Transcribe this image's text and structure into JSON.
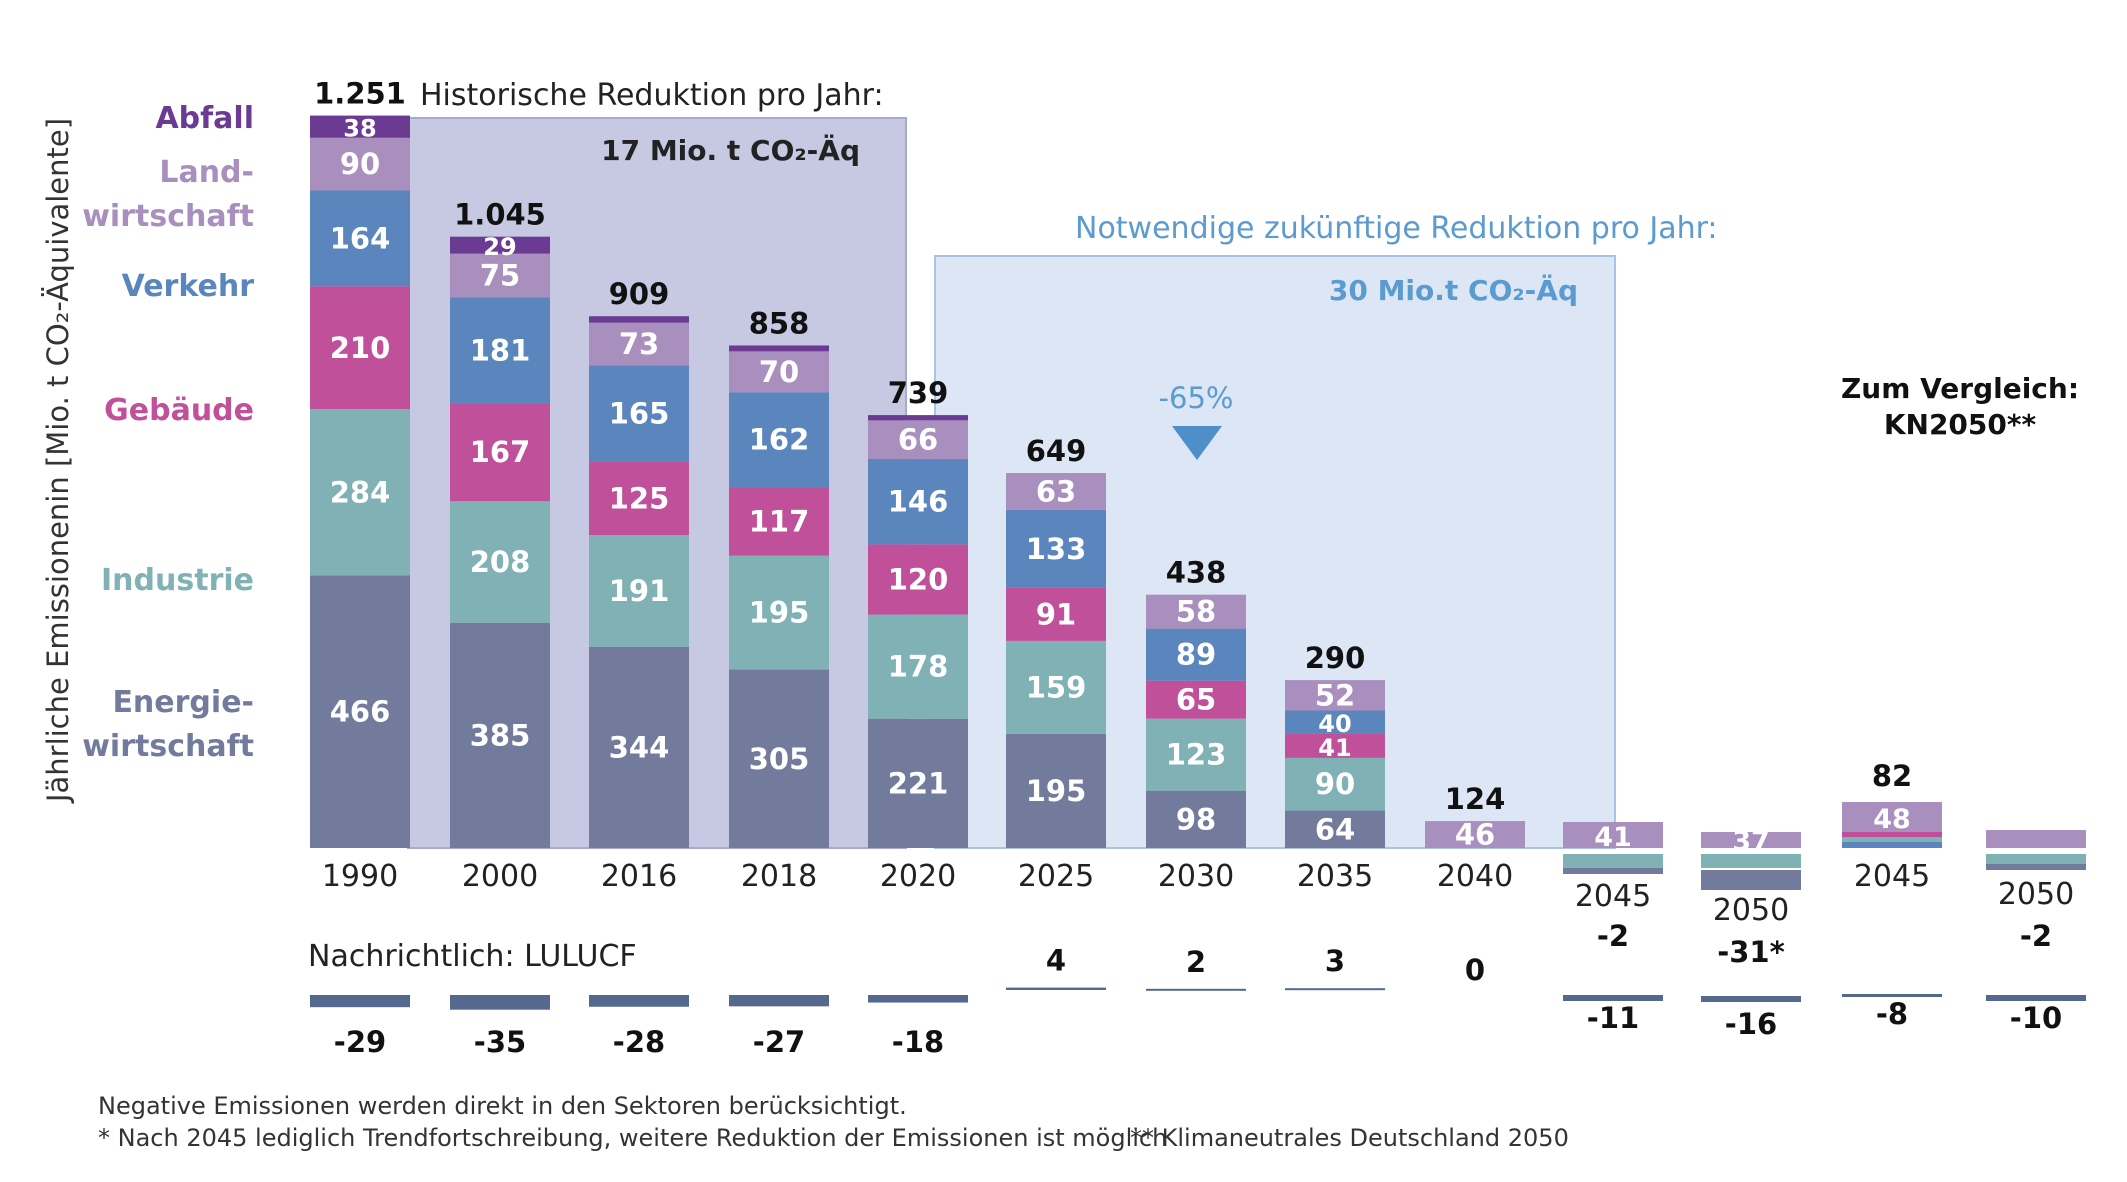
{
  "chart_data": {
    "type": "bar",
    "ylabel": "Jährliche Emissionenin [Mio. t CO₂-Äquivalente]",
    "sector_labels": {
      "abfall": [
        "Abfall"
      ],
      "landwirtschaft": [
        "Land-",
        "wirtschaft"
      ],
      "verkehr": [
        "Verkehr"
      ],
      "gebaeude": [
        "Gebäude"
      ],
      "industrie": [
        "Industrie"
      ],
      "energiewirtschaft": [
        "Energie-",
        "wirtschaft"
      ]
    },
    "colors": {
      "energiewirtschaft": "#727b9c",
      "industrie": "#7fb1b5",
      "gebaeude": "#c0509a",
      "verkehr": "#5b86bd",
      "landwirtschaft": "#a98fbd",
      "abfall": "#6b3b93",
      "lulucf": "#55698f",
      "historic_box": "#c7c9e3",
      "future_box": "#dce6f5",
      "future_text": "#5b9bd0"
    },
    "series": [
      {
        "key": "energiewirtschaft",
        "name": "Energiewirtschaft",
        "values": [
          466,
          385,
          344,
          305,
          221,
          195,
          98,
          64,
          null
        ]
      },
      {
        "key": "industrie",
        "name": "Industrie",
        "values": [
          284,
          208,
          191,
          195,
          178,
          159,
          123,
          90,
          null
        ]
      },
      {
        "key": "gebaeude",
        "name": "Gebäude",
        "values": [
          210,
          167,
          125,
          117,
          120,
          91,
          65,
          41,
          null
        ]
      },
      {
        "key": "verkehr",
        "name": "Verkehr",
        "values": [
          164,
          181,
          165,
          162,
          146,
          133,
          89,
          40,
          null
        ]
      },
      {
        "key": "landwirtschaft",
        "name": "Landwirtschaft",
        "values": [
          90,
          75,
          73,
          70,
          66,
          63,
          58,
          52,
          46
        ]
      },
      {
        "key": "abfall",
        "name": "Abfall",
        "values": [
          38,
          29,
          11,
          10,
          9,
          null,
          null,
          null,
          null
        ]
      }
    ],
    "years": [
      "1990",
      "2000",
      "2016",
      "2018",
      "2020",
      "2025",
      "2030",
      "2035",
      "2040"
    ],
    "totals": [
      "1.251",
      "1.045",
      "909",
      "858",
      "739",
      "649",
      "438",
      "290",
      "124"
    ],
    "annotations": {
      "historic_title": "Historische Reduktion pro Jahr:",
      "historic_value": "17 Mio. t CO₂-Äq",
      "future_title": "Notwendige zukünftige Reduktion pro Jahr:",
      "future_value": "30 Mio.t CO₂-Äq",
      "reduction": "-65%",
      "comparison": [
        "Zum Vergleich:",
        "KN2050**"
      ]
    },
    "right_bars": [
      {
        "year": "2045",
        "total": "-2",
        "landwirtschaft": "41",
        "lulucf": "-11"
      },
      {
        "year": "2050",
        "total": "-31*",
        "landwirtschaft": "37",
        "lulucf": "-16"
      },
      {
        "year": "2045",
        "total": "82",
        "landwirtschaft": "48",
        "lulucf": "-8"
      },
      {
        "year": "2050",
        "total": "-2",
        "landwirtschaft": null,
        "lulucf": "-10"
      }
    ],
    "lulucf": {
      "label": "Nachrichtlich: LULUCF",
      "values": [
        "-29",
        "-35",
        "-28",
        "-27",
        "-18",
        "4",
        "2",
        "3",
        "0"
      ]
    }
  },
  "footnotes": [
    "Negative Emissionen werden direkt in den Sektoren berücksichtigt.",
    "* Nach 2045 lediglich Trendfortschreibung, weitere Reduktion der Emissionen ist möglich",
    "** Klimaneutrales Deutschland 2050"
  ]
}
